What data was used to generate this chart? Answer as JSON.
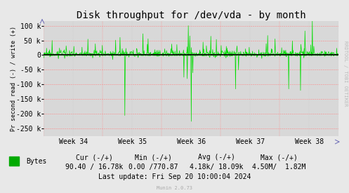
{
  "title": "Disk throughput for /dev/vda - by month",
  "ylabel": "Pr second read (-) / write (+)",
  "x_tick_labels": [
    "Week 34",
    "Week 35",
    "Week 36",
    "Week 37",
    "Week 38"
  ],
  "ylim": [
    -275000,
    115000
  ],
  "yticks": [
    -250000,
    -200000,
    -150000,
    -100000,
    -50000,
    0,
    50000,
    100000
  ],
  "ytick_labels": [
    "-250 k",
    "-200 k",
    "-150 k",
    "-100 k",
    "-50 k",
    "0",
    "50 k",
    "100 k"
  ],
  "bg_color": "#e8e8e8",
  "plot_bg_color": "#d8d8d8",
  "grid_color_h": "#ff8888",
  "grid_color_v": "#cccccc",
  "line_color": "#00dd00",
  "zero_line_color": "#000000",
  "legend_label": "Bytes",
  "legend_color": "#00aa00",
  "footer_cur": "Cur (-/+)",
  "footer_cur_val": "90.40 / 16.78k",
  "footer_min": "Min (-/+)",
  "footer_min_val": "0.00 /770.87",
  "footer_avg": "Avg (-/+)",
  "footer_avg_val": "4.18k/ 18.09k",
  "footer_max": "Max (-/+)",
  "footer_max_val": "4.50M/  1.82M",
  "footer_lastupdate": "Last update: Fri Sep 20 10:00:04 2024",
  "munin_version": "Munin 2.0.73",
  "rrdtool_label": "RRDTOOL / TOBI OETIKER",
  "title_fontsize": 10,
  "axis_fontsize": 7,
  "footer_fontsize": 7,
  "num_points": 800
}
